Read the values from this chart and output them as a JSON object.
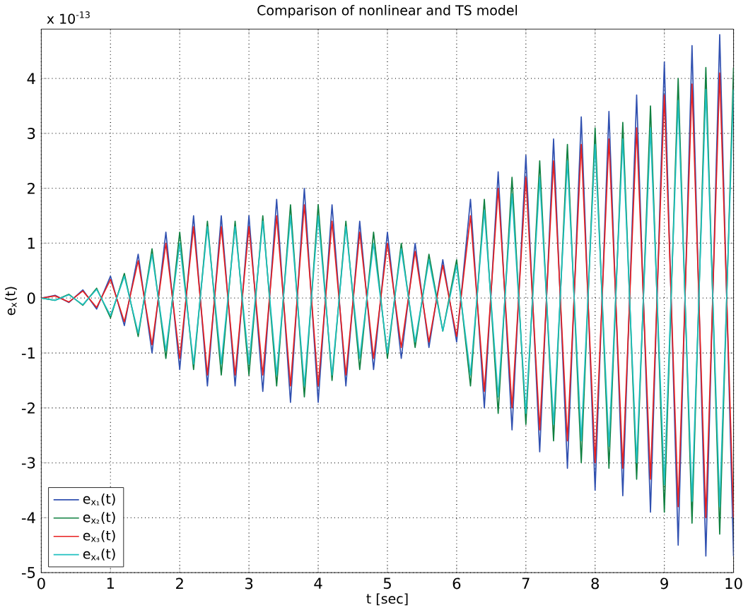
{
  "chart_data": {
    "type": "line",
    "title": "Comparison of nonlinear and TS model",
    "xlabel": "t [sec]",
    "ylabel": "e$_{x}$(t)",
    "annotations": [
      "x 10$^{-13}$"
    ],
    "x": [
      0,
      0.2,
      0.4,
      0.6,
      0.8,
      1.0,
      1.2,
      1.4,
      1.6,
      1.8,
      2.0,
      2.2,
      2.4,
      2.6,
      2.8,
      3.0,
      3.2,
      3.4,
      3.6,
      3.8,
      4.0,
      4.2,
      4.4,
      4.6,
      4.8,
      5.0,
      5.2,
      5.4,
      5.6,
      5.8,
      6.0,
      6.2,
      6.4,
      6.6,
      6.8,
      7.0,
      7.2,
      7.4,
      7.6,
      7.8,
      8.0,
      8.2,
      8.4,
      8.6,
      8.8,
      9.0,
      9.2,
      9.4,
      9.6,
      9.8,
      10.0
    ],
    "series": [
      {
        "name": "e$_{x₁}$(t)",
        "color": "#3050b0",
        "values": [
          0,
          0.05,
          -0.08,
          0.15,
          -0.2,
          0.4,
          -0.5,
          0.8,
          -1.0,
          1.2,
          -1.3,
          1.5,
          -1.6,
          1.5,
          -1.6,
          1.5,
          -1.7,
          1.8,
          -1.9,
          2.0,
          -1.9,
          1.7,
          -1.6,
          1.4,
          -1.3,
          1.2,
          -1.1,
          1.0,
          -0.9,
          0.7,
          -0.8,
          1.8,
          -2.0,
          2.3,
          -2.4,
          2.6,
          -2.8,
          2.9,
          -3.1,
          3.3,
          -3.5,
          3.4,
          -3.6,
          3.7,
          -3.9,
          4.3,
          -4.5,
          4.6,
          -4.7,
          4.8,
          -4.7
        ]
      },
      {
        "name": "e$_{x₂}$(t)",
        "color": "#108040",
        "values": [
          0,
          -0.04,
          0.07,
          -0.13,
          0.18,
          -0.36,
          0.45,
          -0.7,
          0.9,
          -1.1,
          1.2,
          -1.3,
          1.4,
          -1.4,
          1.4,
          -1.4,
          1.5,
          -1.6,
          1.7,
          -1.8,
          1.7,
          -1.5,
          1.4,
          -1.3,
          1.2,
          -1.1,
          1.0,
          -0.9,
          0.8,
          -0.6,
          0.7,
          -1.6,
          1.8,
          -2.1,
          2.2,
          -2.3,
          2.5,
          -2.6,
          2.8,
          -3.0,
          3.1,
          -3.1,
          3.2,
          -3.3,
          3.5,
          -3.9,
          4.0,
          -4.1,
          4.2,
          -4.3,
          4.2
        ]
      },
      {
        "name": "e$_{x₃}$(t)",
        "color": "#e82020",
        "values": [
          0,
          0.04,
          -0.07,
          0.13,
          -0.17,
          0.34,
          -0.43,
          0.68,
          -0.85,
          1.0,
          -1.1,
          1.3,
          -1.4,
          1.3,
          -1.4,
          1.3,
          -1.4,
          1.5,
          -1.6,
          1.7,
          -1.6,
          1.4,
          -1.4,
          1.2,
          -1.1,
          1.0,
          -0.9,
          0.85,
          -0.8,
          0.6,
          -0.7,
          1.5,
          -1.7,
          2.0,
          -2.0,
          2.2,
          -2.4,
          2.5,
          -2.6,
          2.8,
          -3.0,
          2.9,
          -3.1,
          3.1,
          -3.3,
          3.7,
          -3.8,
          3.9,
          -4.0,
          4.1,
          -4.0
        ]
      },
      {
        "name": "e$_{x₄}$(t)",
        "color": "#20c0c0",
        "values": [
          0,
          -0.04,
          0.06,
          -0.12,
          0.16,
          -0.32,
          0.4,
          -0.64,
          0.8,
          -0.96,
          1.0,
          -1.2,
          1.3,
          -1.2,
          1.3,
          -1.2,
          1.4,
          -1.4,
          1.5,
          -1.6,
          1.5,
          -1.4,
          1.3,
          -1.1,
          1.0,
          -1.0,
          0.9,
          -0.8,
          0.7,
          -0.6,
          0.6,
          -1.4,
          1.6,
          -1.8,
          1.9,
          -2.1,
          2.2,
          -2.3,
          2.5,
          -2.6,
          2.8,
          -2.7,
          2.9,
          -3.0,
          3.1,
          -3.4,
          3.6,
          -3.7,
          3.8,
          -3.8,
          3.8
        ]
      }
    ],
    "xlim": [
      0,
      10
    ],
    "ylim": [
      -5,
      4.9
    ],
    "xticks": [
      0,
      1,
      2,
      3,
      4,
      5,
      6,
      7,
      8,
      9,
      10
    ],
    "yticks": [
      -5,
      -4,
      -3,
      -2,
      -1,
      0,
      1,
      2,
      3,
      4
    ],
    "grid": true,
    "legend": "bottom left"
  }
}
